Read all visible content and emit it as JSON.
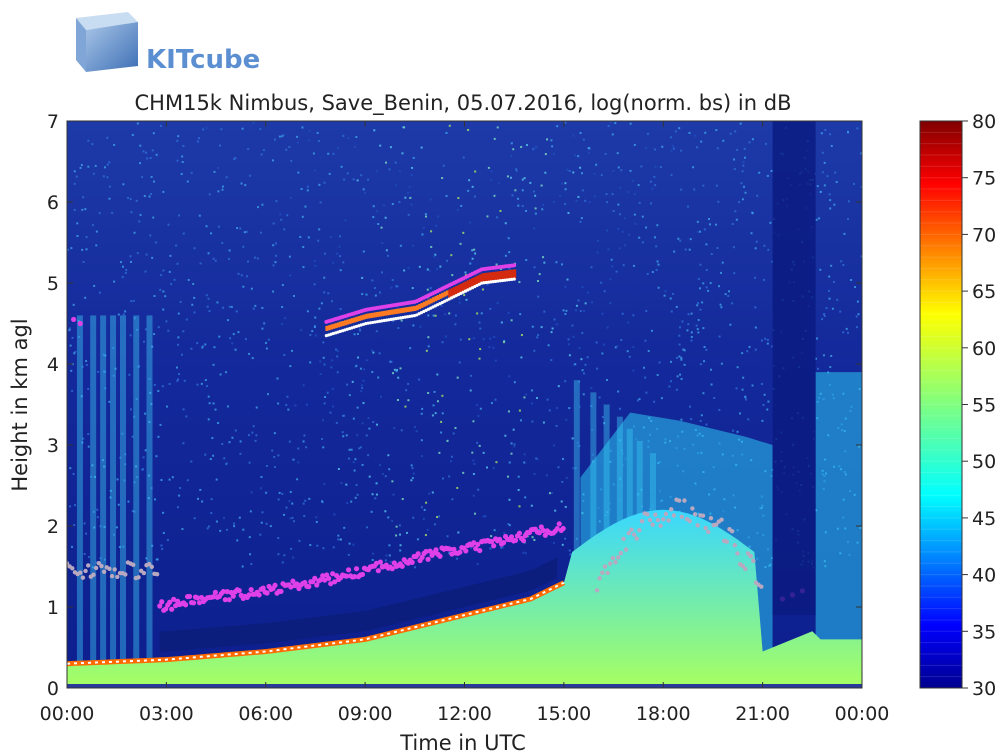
{
  "logo": {
    "text": "KITcube"
  },
  "chart_data": {
    "type": "heatmap",
    "title": "CHM15k Nimbus, Save_Benin, 05.07.2016, log(norm. bs) in dB",
    "xlabel": "Time in UTC",
    "ylabel": "Height in km agl",
    "x_ticks": [
      "00:00",
      "03:00",
      "06:00",
      "09:00",
      "12:00",
      "15:00",
      "18:00",
      "21:00",
      "00:00"
    ],
    "y_ticks": [
      "0",
      "1",
      "2",
      "3",
      "4",
      "5",
      "6",
      "7"
    ],
    "xlim_hours": [
      0,
      24
    ],
    "ylim": [
      0,
      7
    ],
    "colorbar": {
      "ticks": [
        "30",
        "35",
        "40",
        "45",
        "50",
        "55",
        "60",
        "65",
        "70",
        "75",
        "80"
      ],
      "range": [
        30,
        80
      ],
      "colormap": "jet"
    },
    "features": {
      "surface_layer": {
        "x_hours": [
          0,
          3,
          6,
          9,
          12,
          14,
          15,
          18,
          21,
          22.5
        ],
        "top_km": [
          0.3,
          0.35,
          0.45,
          0.6,
          0.9,
          1.1,
          1.3,
          1.8,
          0.45,
          0.7
        ]
      },
      "elevated_layer_magenta": {
        "x_hours": [
          2.8,
          4,
          6,
          8,
          9,
          10,
          11,
          12.5,
          14,
          15
        ],
        "height_km": [
          1.0,
          1.1,
          1.2,
          1.35,
          1.45,
          1.55,
          1.65,
          1.75,
          1.9,
          2.0
        ]
      },
      "high_cloud_km": {
        "x_hours": [
          7.8,
          9,
          10.5,
          11.5,
          12.5,
          13.5
        ],
        "height_km": [
          4.4,
          4.55,
          4.65,
          4.85,
          5.05,
          5.1
        ]
      },
      "night_blocks": [
        {
          "x0": 21.3,
          "x1": 22.6
        }
      ]
    }
  }
}
